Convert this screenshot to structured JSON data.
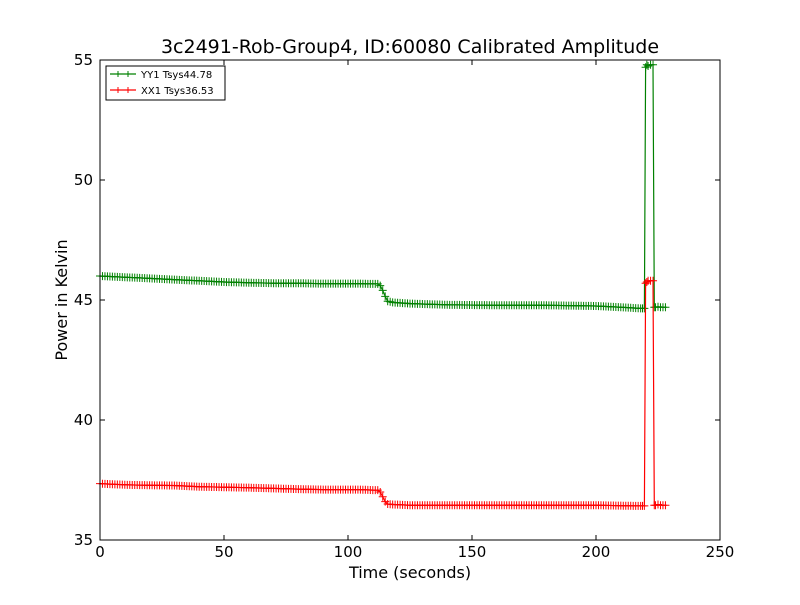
{
  "chart_data": {
    "type": "line",
    "title": "3c2491-Rob-Group4, ID:60080 Calibrated Amplitude",
    "xlabel": "Time (seconds)",
    "ylabel": "Power in Kelvin",
    "xlim": [
      0,
      250
    ],
    "ylim": [
      35,
      55
    ],
    "xticks": [
      0,
      50,
      100,
      150,
      200,
      250
    ],
    "yticks": [
      35,
      40,
      45,
      50,
      55
    ],
    "grid": false,
    "legend_position": "top-left",
    "series": [
      {
        "name": "YY1 Tsys44.78",
        "color": "#008000",
        "x": [
          0,
          10,
          20,
          30,
          40,
          50,
          60,
          70,
          80,
          90,
          100,
          105,
          110,
          112,
          113,
          114,
          115,
          116,
          118,
          125,
          140,
          160,
          180,
          200,
          210,
          218,
          219.5,
          220,
          220.5,
          221,
          222,
          223,
          223.5,
          224,
          225,
          226,
          228
        ],
        "y": [
          46.0,
          45.95,
          45.9,
          45.85,
          45.8,
          45.75,
          45.72,
          45.7,
          45.7,
          45.68,
          45.68,
          45.68,
          45.67,
          45.67,
          45.6,
          45.4,
          45.15,
          44.95,
          44.9,
          44.85,
          44.8,
          44.78,
          44.78,
          44.75,
          44.7,
          44.65,
          44.65,
          54.7,
          54.8,
          54.75,
          54.8,
          54.8,
          44.7,
          44.7,
          44.72,
          44.7,
          44.7
        ]
      },
      {
        "name": "XX1 Tsys36.53",
        "color": "#ff0000",
        "x": [
          0,
          10,
          20,
          30,
          40,
          50,
          60,
          70,
          80,
          90,
          100,
          105,
          110,
          112,
          113,
          114,
          115,
          116,
          118,
          125,
          140,
          160,
          180,
          200,
          210,
          218,
          219.5,
          220,
          220.5,
          221,
          222,
          223,
          223.5,
          224,
          225,
          226,
          228
        ],
        "y": [
          37.35,
          37.3,
          37.28,
          37.27,
          37.22,
          37.2,
          37.18,
          37.15,
          37.12,
          37.1,
          37.1,
          37.1,
          37.08,
          37.08,
          37.0,
          36.8,
          36.6,
          36.5,
          36.48,
          36.45,
          36.45,
          36.45,
          36.45,
          36.45,
          36.43,
          36.42,
          36.42,
          45.7,
          45.75,
          45.8,
          45.8,
          45.8,
          36.45,
          36.45,
          36.48,
          36.45,
          36.45
        ]
      }
    ]
  }
}
